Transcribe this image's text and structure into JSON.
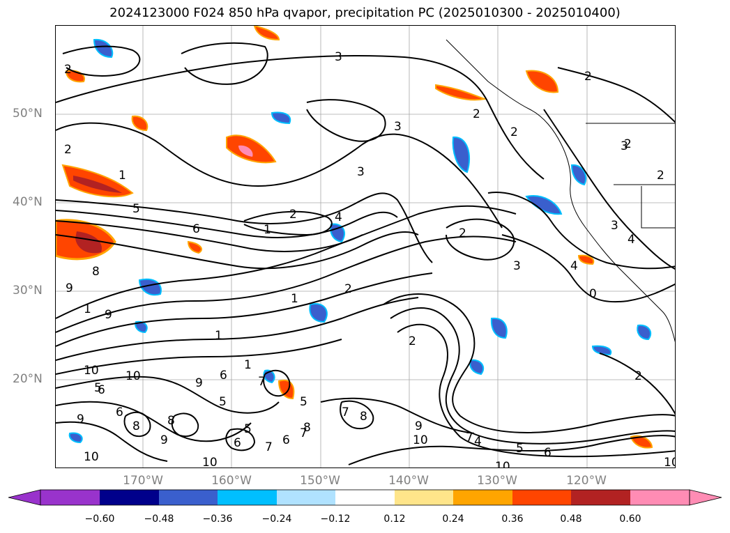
{
  "title": "2024123000 F024 850 hPa qvapor, precipitation PC (2025010300 - 2025010400)",
  "map": {
    "lat_labels": [
      "50°N",
      "40°N",
      "30°N",
      "20°N"
    ],
    "lon_labels": [
      "170°W",
      "160°W",
      "150°W",
      "140°W",
      "130°W",
      "120°W"
    ],
    "grid_color": "#808080",
    "coastline_color": "#000000",
    "contour_color": "#000000",
    "contour_labels": [
      "3",
      "2",
      "2",
      "1",
      "2",
      "1",
      "5",
      "6",
      "2",
      "4",
      "2",
      "3",
      "3",
      "3",
      "2",
      "2",
      "1",
      "8",
      "9",
      "1",
      "9",
      "1",
      "1",
      "2",
      "7",
      "8",
      "10",
      "6",
      "9",
      "6",
      "7",
      "10",
      "9",
      "8",
      "8",
      "7",
      "6",
      "5",
      "7",
      "6",
      "8",
      "5",
      "9",
      "6",
      "5",
      "5",
      "9",
      "10",
      "10",
      "7",
      "6",
      "5",
      "4",
      "10",
      "10",
      "10",
      "2",
      "4",
      "0",
      "3",
      "4",
      "2",
      "3",
      "2",
      "2"
    ]
  },
  "colorbar": {
    "tick_labels": [
      "−0.60",
      "−0.48",
      "−0.36",
      "−0.24",
      "−0.12",
      "0.12",
      "0.24",
      "0.36",
      "0.48",
      "0.60"
    ],
    "colors": [
      "#9933cc",
      "#00008b",
      "#3a5fcd",
      "#00bfff",
      "#b0e2ff",
      "#ffffff",
      "#ffe58a",
      "#ffa500",
      "#ff4500",
      "#b22222",
      "#ff8cb4"
    ],
    "extend": "both"
  }
}
